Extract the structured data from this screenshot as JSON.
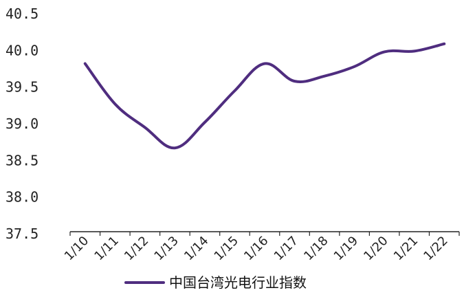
{
  "chart_data": {
    "type": "line",
    "categories": [
      "1/10",
      "1/11",
      "1/12",
      "1/13",
      "1/14",
      "1/15",
      "1/16",
      "1/17",
      "1/18",
      "1/19",
      "1/20",
      "1/21",
      "1/22"
    ],
    "series": [
      {
        "name": "中国台湾光电行业指数",
        "values": [
          39.82,
          39.27,
          38.95,
          38.67,
          39.02,
          39.45,
          39.82,
          39.58,
          39.65,
          39.78,
          39.98,
          39.99,
          40.09
        ],
        "color": "#4f2d7f"
      }
    ],
    "y_ticks": [
      "37.5",
      "38.0",
      "38.5",
      "39.0",
      "39.5",
      "40.0",
      "40.5"
    ],
    "ylim": [
      37.5,
      40.5
    ],
    "grid": false,
    "legend_position": "bottom"
  }
}
